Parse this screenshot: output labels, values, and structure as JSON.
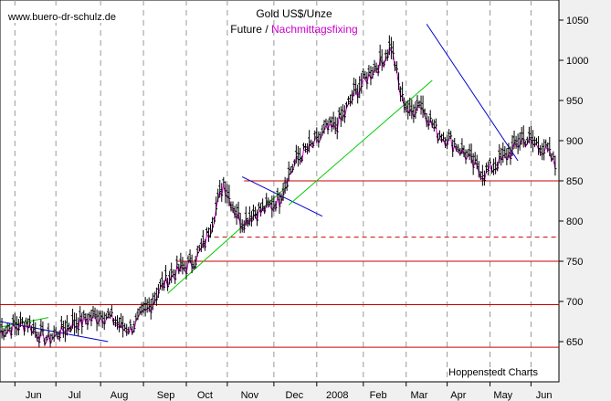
{
  "chart_data": {
    "type": "line",
    "title": "Gold US$/Unze",
    "subtitle_part1": "Future / ",
    "subtitle_part2": "Nachmittagsfixing",
    "watermark": "www.buero-dr-schulz.de",
    "credit": "Hoppenstedt Charts",
    "ylim": [
      600,
      1075
    ],
    "xlim": [
      0,
      300
    ],
    "grid": {
      "vertical_dashed": true,
      "horizontal": false
    },
    "y_ticks": [
      650,
      700,
      750,
      800,
      850,
      900,
      950,
      1000,
      1050
    ],
    "x_labels": [
      {
        "x": 18,
        "label": "Jun"
      },
      {
        "x": 40,
        "label": "Jul"
      },
      {
        "x": 64,
        "label": "Aug"
      },
      {
        "x": 89,
        "label": "Sep"
      },
      {
        "x": 110,
        "label": "Oct"
      },
      {
        "x": 134,
        "label": "Nov"
      },
      {
        "x": 158,
        "label": "Dec"
      },
      {
        "x": 181,
        "label": "2008"
      },
      {
        "x": 203,
        "label": "Feb"
      },
      {
        "x": 225,
        "label": "Mar"
      },
      {
        "x": 246,
        "label": "Apr"
      },
      {
        "x": 270,
        "label": "May"
      },
      {
        "x": 292,
        "label": "Jun"
      }
    ],
    "vgrid_x": [
      8,
      30,
      54,
      77,
      100,
      122,
      147,
      170,
      195,
      218,
      240,
      263,
      285
    ],
    "colors": {
      "future": "#000000",
      "fixing": "#cc00cc",
      "support": "#cc0000",
      "uptrend": "#00cc00",
      "downtrend": "#0000cc",
      "watermark_bg": "#ffffff"
    },
    "series": [
      {
        "name": "Future",
        "x": [
          0,
          5,
          10,
          15,
          20,
          25,
          30,
          35,
          40,
          45,
          50,
          55,
          60,
          65,
          70,
          75,
          80,
          85,
          90,
          95,
          100,
          105,
          110,
          115,
          120,
          125,
          130,
          135,
          140,
          145,
          150,
          155,
          160,
          165,
          170,
          175,
          180,
          185,
          190,
          195,
          200,
          205,
          210,
          215,
          220,
          225,
          230,
          235,
          240,
          245,
          250,
          255,
          260,
          265,
          270,
          275,
          280,
          285,
          290,
          295,
          298
        ],
        "values": [
          665,
          668,
          672,
          675,
          662,
          655,
          660,
          668,
          675,
          678,
          682,
          685,
          680,
          670,
          668,
          680,
          695,
          715,
          730,
          740,
          745,
          755,
          775,
          810,
          850,
          820,
          800,
          810,
          815,
          820,
          830,
          860,
          880,
          890,
          900,
          915,
          920,
          935,
          960,
          975,
          990,
          1000,
          1020,
          960,
          935,
          950,
          930,
          910,
          905,
          895,
          885,
          870,
          860,
          870,
          880,
          890,
          905,
          900,
          895,
          885,
          870
        ]
      }
    ],
    "horizontal_lines": [
      {
        "y": 850,
        "x_from": 131,
        "x_to": 300,
        "style": "solid",
        "color": "#cc0000"
      },
      {
        "y": 780,
        "x_from": 115,
        "x_to": 300,
        "style": "dashed",
        "color": "#cc0000"
      },
      {
        "y": 750,
        "x_from": 95,
        "x_to": 300,
        "style": "solid",
        "color": "#cc0000"
      },
      {
        "y": 696,
        "x_from": 0,
        "x_to": 300,
        "style": "solid",
        "color": "#cc0000"
      },
      {
        "y": 643,
        "x_from": 0,
        "x_to": 300,
        "style": "solid",
        "color": "#cc0000"
      }
    ],
    "trend_lines": [
      {
        "from": [
          0,
          675
        ],
        "to": [
          58,
          650
        ],
        "color": "#0000cc"
      },
      {
        "from": [
          0,
          668
        ],
        "to": [
          26,
          680
        ],
        "color": "#00cc00"
      },
      {
        "from": [
          130,
          855
        ],
        "to": [
          173,
          806
        ],
        "color": "#0000cc"
      },
      {
        "from": [
          90,
          710
        ],
        "to": [
          155,
          845
        ],
        "color": "#00cc00"
      },
      {
        "from": [
          155,
          820
        ],
        "to": [
          232,
          975
        ],
        "color": "#00cc00"
      },
      {
        "from": [
          229,
          1045
        ],
        "to": [
          278,
          875
        ],
        "color": "#0000cc"
      }
    ]
  }
}
